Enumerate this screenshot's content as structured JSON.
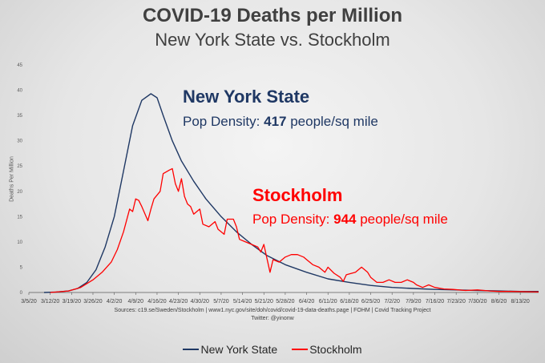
{
  "header": {
    "title": "COVID-19 Deaths per Million",
    "subtitle": "New York State vs. Stockholm"
  },
  "annotations": {
    "ny_title": "New York State",
    "ny_prefix": "Pop Density: ",
    "ny_value": "417",
    "ny_suffix": " people/sq mile",
    "sth_title": "Stockholm",
    "sth_prefix": "Pop Density: ",
    "sth_value": "944",
    "sth_suffix": " people/sq mile"
  },
  "footer": {
    "sources": "Sources:  c19.se/Sweden/Stockholm  |  www1.nyc.gov/site/doh/covid/covid-19-data-deaths.page  |  FOHM  |  Covid Tracking Project",
    "twitter": "Twitter: @yinonw"
  },
  "colors": {
    "ny": "#1f3864",
    "stockholm": "#ff0000",
    "axis": "#595959"
  },
  "chart_data": {
    "type": "line",
    "title": "COVID-19 Deaths per Million",
    "subtitle": "New York State vs. Stockholm",
    "ylabel": "Deaths Per Million",
    "xlabel": "",
    "ylim": [
      0,
      45
    ],
    "yticks": [
      0,
      5,
      10,
      15,
      20,
      25,
      30,
      35,
      40,
      45
    ],
    "xlim": [
      "3/5/20",
      "8/19/20"
    ],
    "xticks": [
      "3/5/20",
      "3/12/20",
      "3/19/20",
      "3/26/20",
      "4/2/20",
      "4/9/20",
      "4/16/20",
      "4/23/20",
      "4/30/20",
      "5/7/20",
      "5/14/20",
      "5/21/20",
      "5/28/20",
      "6/4/20",
      "6/11/20",
      "6/18/20",
      "6/25/20",
      "7/2/20",
      "7/9/20",
      "7/16/20",
      "7/23/20",
      "7/30/20",
      "8/6/20",
      "8/13/20"
    ],
    "grid": false,
    "legend": "bottom",
    "series": [
      {
        "name": "New York State",
        "color": "#1f3864",
        "points": [
          [
            "3/10/20",
            0
          ],
          [
            "3/14/20",
            0.1
          ],
          [
            "3/18/20",
            0.3
          ],
          [
            "3/21/20",
            0.8
          ],
          [
            "3/24/20",
            2
          ],
          [
            "3/27/20",
            4.5
          ],
          [
            "3/30/20",
            9
          ],
          [
            "4/2/20",
            15
          ],
          [
            "4/5/20",
            24
          ],
          [
            "4/8/20",
            33
          ],
          [
            "4/11/20",
            38
          ],
          [
            "4/14/20",
            39.3
          ],
          [
            "4/16/20",
            38.5
          ],
          [
            "4/18/20",
            35
          ],
          [
            "4/21/20",
            30
          ],
          [
            "4/24/20",
            26
          ],
          [
            "4/28/20",
            22
          ],
          [
            "5/2/20",
            18.5
          ],
          [
            "5/7/20",
            15
          ],
          [
            "5/12/20",
            12
          ],
          [
            "5/17/20",
            9.5
          ],
          [
            "5/22/20",
            7.3
          ],
          [
            "5/28/20",
            5.5
          ],
          [
            "6/4/20",
            4
          ],
          [
            "6/11/20",
            2.7
          ],
          [
            "6/18/20",
            2
          ],
          [
            "6/25/20",
            1.4
          ],
          [
            "7/2/20",
            1
          ],
          [
            "7/9/20",
            0.8
          ],
          [
            "7/16/20",
            0.6
          ],
          [
            "7/23/20",
            0.5
          ],
          [
            "7/30/20",
            0.4
          ],
          [
            "8/6/20",
            0.3
          ],
          [
            "8/13/20",
            0.2
          ],
          [
            "8/19/20",
            0.2
          ]
        ]
      },
      {
        "name": "Stockholm",
        "color": "#ff0000",
        "points": [
          [
            "3/12/20",
            0
          ],
          [
            "3/18/20",
            0.3
          ],
          [
            "3/22/20",
            1
          ],
          [
            "3/26/20",
            2.5
          ],
          [
            "3/29/20",
            4
          ],
          [
            "4/1/20",
            6
          ],
          [
            "4/3/20",
            8.5
          ],
          [
            "4/5/20",
            12
          ],
          [
            "4/7/20",
            16.5
          ],
          [
            "4/8/20",
            16
          ],
          [
            "4/9/20",
            18.5
          ],
          [
            "4/10/20",
            18.2
          ],
          [
            "4/11/20",
            17
          ],
          [
            "4/13/20",
            14.2
          ],
          [
            "4/14/20",
            16.5
          ],
          [
            "4/15/20",
            18.5
          ],
          [
            "4/17/20",
            20
          ],
          [
            "4/18/20",
            23.5
          ],
          [
            "4/20/20",
            24.2
          ],
          [
            "4/21/20",
            24.5
          ],
          [
            "4/22/20",
            21.5
          ],
          [
            "4/23/20",
            20
          ],
          [
            "4/24/20",
            22.5
          ],
          [
            "4/25/20",
            19
          ],
          [
            "4/26/20",
            17.5
          ],
          [
            "4/27/20",
            17
          ],
          [
            "4/28/20",
            15.5
          ],
          [
            "4/30/20",
            16.5
          ],
          [
            "5/1/20",
            13.5
          ],
          [
            "5/3/20",
            13
          ],
          [
            "5/5/20",
            14
          ],
          [
            "5/6/20",
            12.5
          ],
          [
            "5/8/20",
            11.5
          ],
          [
            "5/9/20",
            14.5
          ],
          [
            "5/11/20",
            14.5
          ],
          [
            "5/12/20",
            13
          ],
          [
            "5/13/20",
            10.5
          ],
          [
            "5/15/20",
            10
          ],
          [
            "5/17/20",
            9.5
          ],
          [
            "5/19/20",
            9
          ],
          [
            "5/20/20",
            8
          ],
          [
            "5/21/20",
            9.5
          ],
          [
            "5/23/20",
            4
          ],
          [
            "5/24/20",
            6.5
          ],
          [
            "5/26/20",
            6
          ],
          [
            "5/28/20",
            7
          ],
          [
            "5/30/20",
            7.5
          ],
          [
            "6/1/20",
            7.5
          ],
          [
            "6/3/20",
            7
          ],
          [
            "6/4/20",
            6.5
          ],
          [
            "6/6/20",
            5.5
          ],
          [
            "6/8/20",
            5
          ],
          [
            "6/10/20",
            4
          ],
          [
            "6/11/20",
            5
          ],
          [
            "6/13/20",
            3.8
          ],
          [
            "6/15/20",
            3
          ],
          [
            "6/16/20",
            2.2
          ],
          [
            "6/17/20",
            3.5
          ],
          [
            "6/20/20",
            4
          ],
          [
            "6/22/20",
            5
          ],
          [
            "6/24/20",
            4
          ],
          [
            "6/25/20",
            3
          ],
          [
            "6/27/20",
            2
          ],
          [
            "6/29/20",
            2
          ],
          [
            "7/1/20",
            2.5
          ],
          [
            "7/3/20",
            2
          ],
          [
            "7/5/20",
            2
          ],
          [
            "7/7/20",
            2.5
          ],
          [
            "7/9/20",
            2
          ],
          [
            "7/10/20",
            1.5
          ],
          [
            "7/12/20",
            1
          ],
          [
            "7/14/20",
            1.5
          ],
          [
            "7/16/20",
            1
          ],
          [
            "7/19/20",
            0.7
          ],
          [
            "7/22/20",
            0.6
          ],
          [
            "7/26/20",
            0.4
          ],
          [
            "7/30/20",
            0.5
          ],
          [
            "8/3/20",
            0.3
          ],
          [
            "8/6/20",
            0.2
          ],
          [
            "8/10/20",
            0.2
          ],
          [
            "8/19/20",
            0.1
          ]
        ]
      }
    ]
  }
}
